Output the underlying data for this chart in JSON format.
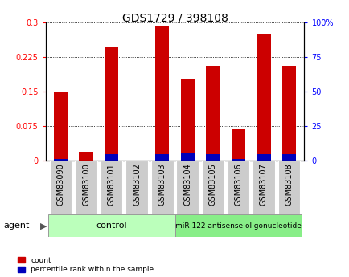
{
  "title": "GDS1729 / 398108",
  "samples": [
    "GSM83090",
    "GSM83100",
    "GSM83101",
    "GSM83102",
    "GSM83103",
    "GSM83104",
    "GSM83105",
    "GSM83106",
    "GSM83107",
    "GSM83108"
  ],
  "count_values": [
    0.15,
    0.02,
    0.245,
    0.001,
    0.29,
    0.175,
    0.205,
    0.068,
    0.275,
    0.205
  ],
  "percentile_values": [
    1.5,
    0.3,
    4.5,
    0.15,
    4.5,
    6.0,
    4.5,
    1.5,
    4.5,
    4.5
  ],
  "ylim_left": [
    0,
    0.3
  ],
  "ylim_right": [
    0,
    100
  ],
  "yticks_left": [
    0,
    0.075,
    0.15,
    0.225,
    0.3
  ],
  "ytick_labels_left": [
    "0",
    "0.075",
    "0.15",
    "0.225",
    "0.3"
  ],
  "yticks_right": [
    0,
    25,
    50,
    75,
    100
  ],
  "ytick_labels_right": [
    "0",
    "25",
    "50",
    "75",
    "100%"
  ],
  "bar_color_red": "#cc0000",
  "bar_color_blue": "#0000bb",
  "bar_width": 0.55,
  "control_label": "control",
  "treatment_label": "miR-122 antisense oligonucleotide",
  "agent_label": "agent",
  "legend_count_label": "count",
  "legend_pct_label": "percentile rank within the sample",
  "control_color": "#bbffbb",
  "treatment_color": "#88ee88",
  "tick_box_color": "#cccccc",
  "grid_color": "black",
  "title_fontsize": 10,
  "tick_fontsize": 7,
  "label_fontsize": 8
}
